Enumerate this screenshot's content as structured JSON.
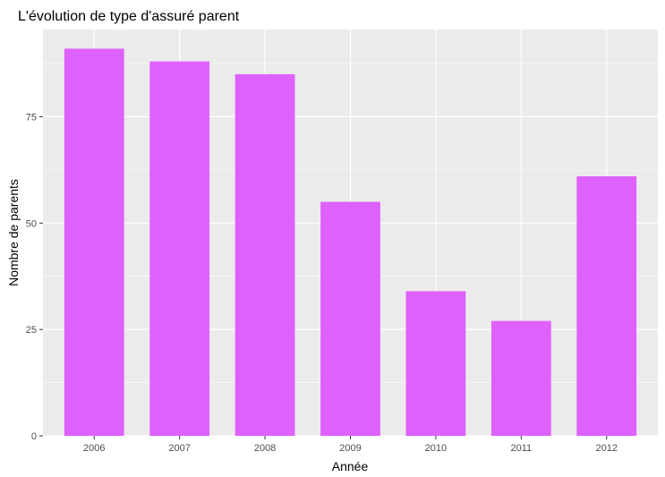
{
  "chart_data": {
    "type": "bar",
    "title": "L'évolution de type d'assuré parent",
    "xlabel": "Année",
    "ylabel": "Nombre de parents",
    "categories": [
      "2006",
      "2007",
      "2008",
      "2009",
      "2010",
      "2011",
      "2012"
    ],
    "values": [
      91,
      88,
      85,
      55,
      34,
      27,
      61
    ],
    "ylim": [
      0,
      95.5
    ],
    "yticks": [
      0,
      25,
      50,
      75
    ],
    "ytick_labels": [
      "0",
      "25",
      "50",
      "75"
    ],
    "grid": true,
    "legend": "none",
    "colors": {
      "bar": "#df61fd",
      "panel_background": "#ebebeb",
      "grid": "#ffffff",
      "tick_text": "#4d4d4d"
    }
  }
}
